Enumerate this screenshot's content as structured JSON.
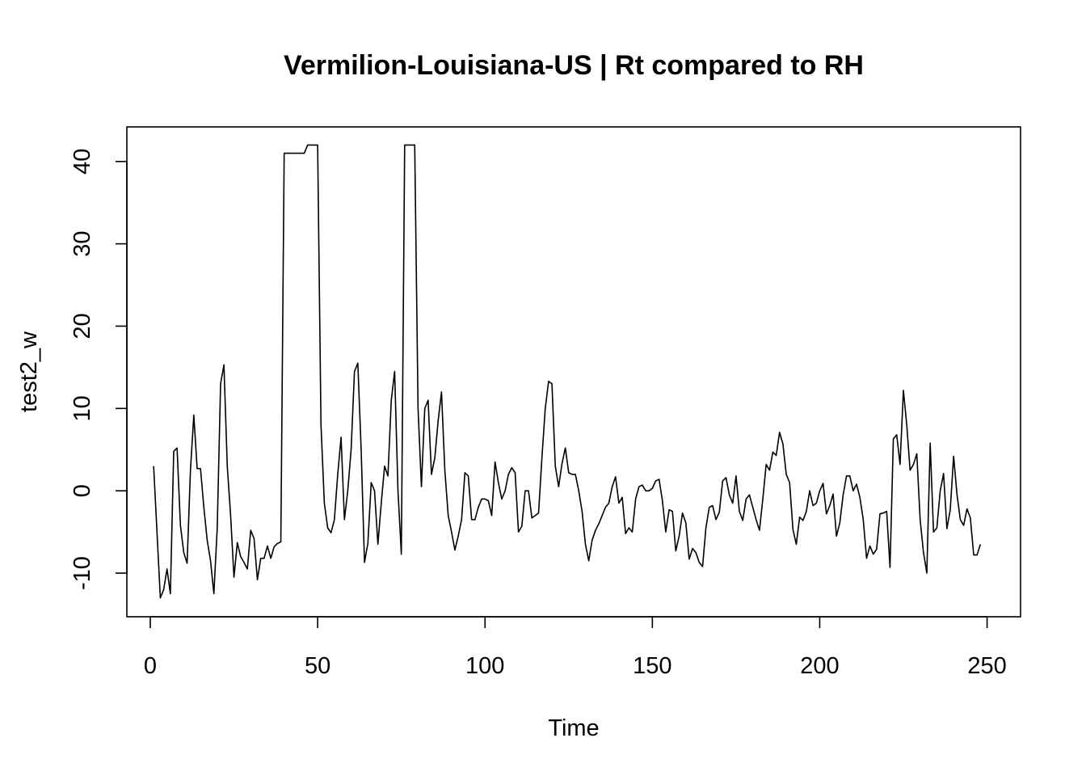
{
  "chart_data": {
    "type": "line",
    "title": "Vermilion-Louisiana-US | Rt compared to RH",
    "xlabel": "Time",
    "ylabel": "test2_w",
    "xlim": [
      -7,
      260
    ],
    "ylim": [
      -15.3,
      44.2
    ],
    "x_ticks": [
      0,
      50,
      100,
      150,
      200,
      250
    ],
    "y_ticks": [
      -10,
      0,
      10,
      20,
      30,
      40
    ],
    "x_tick_labels": [
      "0",
      "50",
      "100",
      "150",
      "200",
      "250"
    ],
    "y_tick_labels": [
      "-10",
      "0",
      "10",
      "20",
      "30",
      "40"
    ],
    "grid": false,
    "legend": "none",
    "line_color": "#000000",
    "series": [
      {
        "x_start": 1,
        "values": [
          3,
          -5,
          -13,
          -12,
          -9.5,
          -12.5,
          4.8,
          5.2,
          -4.2,
          -7.5,
          -8.8,
          2.5,
          9.2,
          2.7,
          2.7,
          -2,
          -6,
          -8.5,
          -12.5,
          -4.5,
          13,
          15.3,
          3,
          -3,
          -10.5,
          -6.3,
          -8,
          -8.7,
          -9.5,
          -4.8,
          -5.8,
          -10.8,
          -8.2,
          -8.2,
          -6.7,
          -8.2,
          -6.8,
          -6.4,
          -6.2,
          41,
          41,
          41,
          41,
          41,
          41,
          41,
          42,
          42,
          42,
          42,
          8,
          -1.5,
          -4.5,
          -5.1,
          -3.5,
          2,
          6.5,
          -3.5,
          0,
          5,
          14.5,
          15.5,
          5,
          -8.7,
          -6.4,
          1,
          0,
          -6.5,
          -1.5,
          3,
          1.8,
          11,
          14.5,
          0,
          -7.7,
          42,
          42,
          42,
          42,
          10,
          0.5,
          10,
          11,
          2,
          4,
          8.5,
          12,
          2.5,
          -3,
          -5,
          -7.2,
          -5.5,
          -3.5,
          2.2,
          1.8,
          -3.5,
          -3.5,
          -2,
          -1,
          -1,
          -1.2,
          -3,
          3.5,
          1,
          -1,
          0,
          2,
          2.8,
          2.2,
          -5,
          -4.3,
          0,
          0,
          -3.3,
          -3,
          -2.7,
          4,
          10,
          13.3,
          13,
          3,
          0.5,
          3.3,
          5.2,
          2.2,
          2,
          2,
          0,
          -2.5,
          -6.5,
          -8.5,
          -6,
          -4.8,
          -4,
          -3,
          -2,
          -1.5,
          0.5,
          1.7,
          -1.5,
          -0.8,
          -5.2,
          -4.5,
          -5,
          -1,
          0.5,
          0.7,
          0,
          0,
          0.3,
          1.2,
          1.4,
          -1.2,
          -5,
          -2.3,
          -2.5,
          -7.3,
          -5.5,
          -2.7,
          -3.9,
          -8.3,
          -7,
          -7.5,
          -8.7,
          -9.2,
          -4.5,
          -2,
          -1.8,
          -3.5,
          -2.6,
          1.2,
          1.6,
          -0.5,
          -1.5,
          1.8,
          -2.5,
          -3.6,
          -1,
          -0.5,
          -2,
          -3.5,
          -4.8,
          -1,
          3.2,
          2.5,
          4.7,
          4.3,
          7.1,
          5.7,
          2,
          1,
          -4.7,
          -6.5,
          -3.2,
          -3.6,
          -2.5,
          0,
          -1.8,
          -1.5,
          0,
          0.9,
          -2.8,
          -1.8,
          -0.4,
          -5.5,
          -3.9,
          -0.5,
          1.8,
          1.8,
          0,
          0.8,
          -0.8,
          -3.5,
          -8.2,
          -6.7,
          -7.7,
          -7.1,
          -2.8,
          -2.7,
          -2.5,
          -9.3,
          6.3,
          6.8,
          3.2,
          12.2,
          8,
          2.5,
          3.2,
          4.5,
          -3.5,
          -7.5,
          -10,
          5.8,
          -5,
          -4.5,
          0,
          2.1,
          -4.6,
          -2.3,
          4.2,
          -0.4,
          -3.5,
          -4.2,
          -2.2,
          -3.3,
          -7.8,
          -7.8,
          -6.5
        ]
      }
    ]
  }
}
